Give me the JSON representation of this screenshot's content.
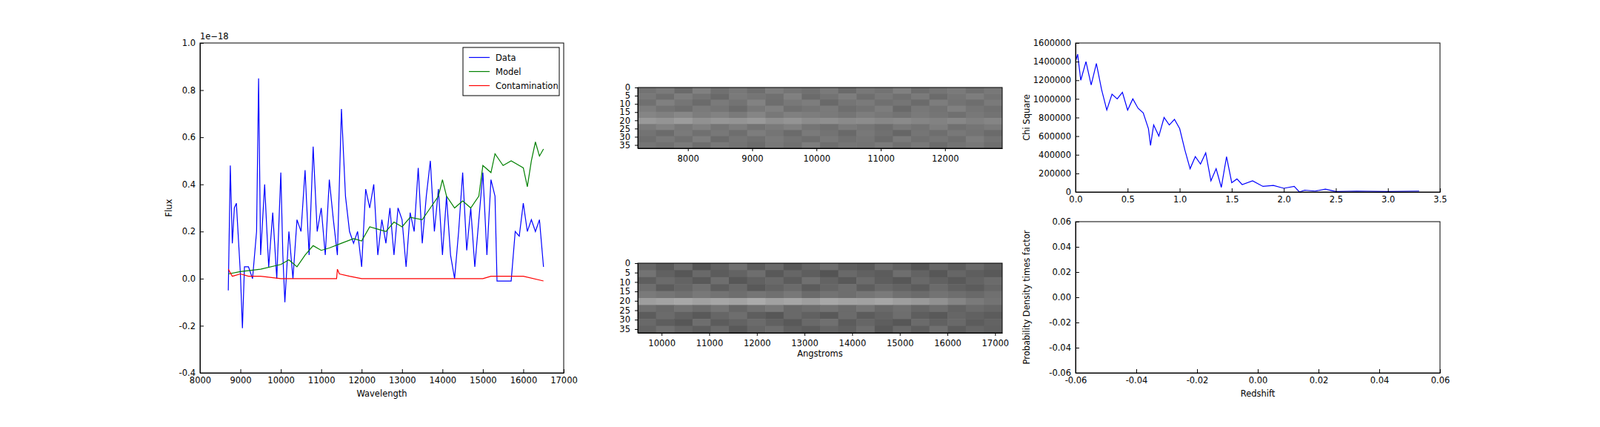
{
  "chart_data": [
    {
      "type": "line",
      "xlabel": "Wavelength",
      "ylabel": "Flux",
      "y_offset_label": "1e−18",
      "xlim": [
        8000,
        17000
      ],
      "ylim": [
        -0.4,
        1.0
      ],
      "xticks": [
        8000,
        9000,
        10000,
        11000,
        12000,
        13000,
        14000,
        15000,
        16000,
        17000
      ],
      "yticks": [
        -0.4,
        -0.2,
        {
          "value": 0,
          "label": "0.0"
        },
        0.2,
        0.4,
        0.6,
        0.8,
        {
          "value": 1,
          "label": "1.0"
        }
      ],
      "legend": "upper right",
      "series": [
        {
          "name": "Data",
          "color": "#0000ff",
          "x": [
            8700,
            8750,
            8800,
            8850,
            8900,
            9000,
            9050,
            9100,
            9200,
            9300,
            9400,
            9450,
            9500,
            9600,
            9650,
            9700,
            9800,
            9900,
            10000,
            10050,
            10100,
            10200,
            10300,
            10400,
            10500,
            10600,
            10700,
            10800,
            10900,
            11000,
            11100,
            11200,
            11300,
            11400,
            11500,
            11600,
            11700,
            11800,
            11900,
            12000,
            12100,
            12200,
            12300,
            12400,
            12500,
            12600,
            12700,
            12800,
            12900,
            13000,
            13100,
            13200,
            13300,
            13400,
            13500,
            13600,
            13700,
            13800,
            13900,
            14000,
            14100,
            14200,
            14300,
            14400,
            14500,
            14600,
            14700,
            14800,
            14900,
            15000,
            15100,
            15200,
            15300,
            15350,
            15500,
            15700,
            15800,
            15900,
            16000,
            16100,
            16200,
            16300,
            16400,
            16500
          ],
          "values": [
            -0.05,
            0.48,
            0.15,
            0.3,
            0.32,
            0.02,
            -0.21,
            0.05,
            0.05,
            0.0,
            0.2,
            0.85,
            0.1,
            0.4,
            0.22,
            0.05,
            0.28,
            0.0,
            0.45,
            0.1,
            -0.1,
            0.2,
            0.0,
            0.25,
            0.2,
            0.46,
            0.1,
            0.56,
            0.2,
            0.3,
            0.1,
            0.42,
            0.25,
            0.1,
            0.72,
            0.35,
            0.2,
            0.15,
            0.2,
            0.05,
            0.38,
            0.3,
            0.4,
            0.1,
            0.25,
            0.15,
            0.3,
            0.1,
            0.3,
            0.25,
            0.05,
            0.28,
            0.2,
            0.47,
            0.15,
            0.35,
            0.5,
            0.2,
            0.38,
            0.1,
            0.35,
            0.1,
            0.0,
            0.2,
            0.45,
            0.12,
            0.3,
            0.05,
            0.25,
            0.45,
            0.1,
            0.42,
            0.35,
            -0.01,
            -0.01,
            -0.01,
            0.2,
            0.18,
            0.32,
            0.2,
            0.25,
            0.2,
            0.25,
            0.05
          ]
        },
        {
          "name": "Model",
          "color": "#008000",
          "x": [
            8700,
            9000,
            9500,
            10000,
            10200,
            10400,
            10600,
            10800,
            11000,
            11200,
            11500,
            11800,
            12000,
            12200,
            12400,
            12600,
            12800,
            13000,
            13200,
            13500,
            13700,
            13900,
            14000,
            14100,
            14300,
            14500,
            14700,
            14900,
            15000,
            15200,
            15300,
            15500,
            15700,
            15900,
            16000,
            16100,
            16200,
            16300,
            16400,
            16500
          ],
          "values": [
            0.02,
            0.03,
            0.04,
            0.06,
            0.08,
            0.05,
            0.1,
            0.14,
            0.12,
            0.13,
            0.15,
            0.17,
            0.16,
            0.22,
            0.21,
            0.2,
            0.24,
            0.22,
            0.26,
            0.25,
            0.3,
            0.35,
            0.42,
            0.35,
            0.3,
            0.33,
            0.3,
            0.35,
            0.48,
            0.45,
            0.53,
            0.48,
            0.5,
            0.48,
            0.47,
            0.39,
            0.5,
            0.58,
            0.52,
            0.55
          ]
        },
        {
          "name": "Contamination",
          "color": "#ff0000",
          "x": [
            8700,
            8800,
            9000,
            9200,
            9500,
            10000,
            11000,
            11380,
            11400,
            11450,
            11700,
            12000,
            15000,
            15200,
            15500,
            16000,
            16500
          ],
          "values": [
            0.04,
            0.01,
            0.02,
            0.01,
            0.01,
            0.0,
            0.0,
            0.0,
            0.04,
            0.02,
            0.01,
            0.0,
            0.0,
            0.01,
            0.01,
            0.01,
            -0.01
          ]
        }
      ]
    },
    {
      "type": "heatmap",
      "xlim": [
        7220,
        12890
      ],
      "ylim": [
        0,
        37
      ],
      "xticks": [
        8000,
        9000,
        10000,
        11000,
        12000
      ],
      "yticks": [
        0,
        5,
        10,
        15,
        20,
        25,
        30,
        35
      ],
      "zlim": [
        0,
        1
      ],
      "z": [
        [
          0.45,
          0.48,
          0.42,
          0.5,
          0.44,
          0.47,
          0.43,
          0.49,
          0.46,
          0.44,
          0.48,
          0.42,
          0.47,
          0.45,
          0.5,
          0.43,
          0.46,
          0.48,
          0.44,
          0.47
        ],
        [
          0.47,
          0.43,
          0.49,
          0.45,
          0.41,
          0.48,
          0.46,
          0.44,
          0.5,
          0.42,
          0.45,
          0.49,
          0.43,
          0.47,
          0.44,
          0.48,
          0.42,
          0.46,
          0.49,
          0.45
        ],
        [
          0.44,
          0.5,
          0.46,
          0.42,
          0.48,
          0.45,
          0.51,
          0.43,
          0.47,
          0.49,
          0.41,
          0.46,
          0.48,
          0.44,
          0.46,
          0.42,
          0.49,
          0.45,
          0.43,
          0.48
        ],
        [
          0.49,
          0.45,
          0.43,
          0.48,
          0.46,
          0.42,
          0.47,
          0.5,
          0.44,
          0.46,
          0.48,
          0.43,
          0.45,
          0.49,
          0.41,
          0.47,
          0.45,
          0.5,
          0.46,
          0.44
        ],
        [
          0.52,
          0.5,
          0.53,
          0.49,
          0.51,
          0.48,
          0.52,
          0.47,
          0.5,
          0.49,
          0.48,
          0.46,
          0.49,
          0.47,
          0.45,
          0.48,
          0.46,
          0.44,
          0.47,
          0.45
        ],
        [
          0.6,
          0.58,
          0.61,
          0.57,
          0.59,
          0.58,
          0.6,
          0.56,
          0.58,
          0.55,
          0.56,
          0.54,
          0.55,
          0.53,
          0.54,
          0.52,
          0.51,
          0.53,
          0.5,
          0.52
        ],
        [
          0.48,
          0.51,
          0.47,
          0.5,
          0.46,
          0.49,
          0.45,
          0.48,
          0.5,
          0.46,
          0.44,
          0.48,
          0.46,
          0.43,
          0.47,
          0.45,
          0.49,
          0.44,
          0.46,
          0.48
        ],
        [
          0.45,
          0.42,
          0.48,
          0.44,
          0.47,
          0.43,
          0.49,
          0.46,
          0.42,
          0.48,
          0.45,
          0.41,
          0.47,
          0.44,
          0.4,
          0.46,
          0.43,
          0.47,
          0.45,
          0.42
        ],
        [
          0.43,
          0.47,
          0.44,
          0.49,
          0.42,
          0.46,
          0.44,
          0.48,
          0.45,
          0.43,
          0.47,
          0.44,
          0.46,
          0.42,
          0.48,
          0.44,
          0.46,
          0.43,
          0.49,
          0.45
        ],
        [
          0.46,
          0.44,
          0.48,
          0.43,
          0.47,
          0.45,
          0.42,
          0.47,
          0.44,
          0.49,
          0.43,
          0.46,
          0.45,
          0.48,
          0.44,
          0.47,
          0.42,
          0.45,
          0.47,
          0.43
        ]
      ]
    },
    {
      "type": "heatmap",
      "xlabel": "Angstroms",
      "xlim": [
        9500,
        17150
      ],
      "ylim": [
        0,
        37
      ],
      "xticks": [
        10000,
        11000,
        12000,
        13000,
        14000,
        15000,
        16000,
        17000
      ],
      "yticks": [
        0,
        5,
        10,
        15,
        20,
        25,
        30,
        35
      ],
      "zlim": [
        0,
        1
      ],
      "z": [
        [
          0.4,
          0.35,
          0.42,
          0.33,
          0.38,
          0.44,
          0.36,
          0.41,
          0.34,
          0.39,
          0.43,
          0.37,
          0.35,
          0.42,
          0.38,
          0.33,
          0.4,
          0.36,
          0.41,
          0.37
        ],
        [
          0.45,
          0.38,
          0.34,
          0.41,
          0.36,
          0.39,
          0.43,
          0.35,
          0.4,
          0.37,
          0.33,
          0.41,
          0.38,
          0.36,
          0.43,
          0.39,
          0.34,
          0.4,
          0.37,
          0.35
        ],
        [
          0.37,
          0.42,
          0.39,
          0.35,
          0.43,
          0.34,
          0.38,
          0.41,
          0.36,
          0.44,
          0.39,
          0.35,
          0.42,
          0.37,
          0.34,
          0.41,
          0.38,
          0.35,
          0.39,
          0.42
        ],
        [
          0.43,
          0.36,
          0.4,
          0.44,
          0.37,
          0.41,
          0.35,
          0.39,
          0.42,
          0.36,
          0.4,
          0.43,
          0.37,
          0.41,
          0.39,
          0.36,
          0.42,
          0.38,
          0.36,
          0.4
        ],
        [
          0.48,
          0.46,
          0.44,
          0.47,
          0.45,
          0.43,
          0.46,
          0.44,
          0.47,
          0.42,
          0.45,
          0.43,
          0.46,
          0.48,
          0.44,
          0.42,
          0.45,
          0.43,
          0.41,
          0.44
        ],
        [
          0.62,
          0.64,
          0.66,
          0.63,
          0.65,
          0.64,
          0.67,
          0.63,
          0.65,
          0.62,
          0.66,
          0.64,
          0.63,
          0.65,
          0.62,
          0.6,
          0.57,
          0.52,
          0.48,
          0.45
        ],
        [
          0.44,
          0.41,
          0.45,
          0.42,
          0.46,
          0.4,
          0.44,
          0.47,
          0.41,
          0.43,
          0.45,
          0.42,
          0.46,
          0.41,
          0.44,
          0.4,
          0.43,
          0.39,
          0.42,
          0.4
        ],
        [
          0.36,
          0.42,
          0.38,
          0.35,
          0.4,
          0.43,
          0.37,
          0.34,
          0.41,
          0.38,
          0.35,
          0.42,
          0.36,
          0.39,
          0.43,
          0.37,
          0.35,
          0.4,
          0.38,
          0.36
        ],
        [
          0.41,
          0.37,
          0.34,
          0.43,
          0.36,
          0.39,
          0.42,
          0.38,
          0.35,
          0.41,
          0.44,
          0.36,
          0.4,
          0.37,
          0.34,
          0.42,
          0.38,
          0.41,
          0.36,
          0.39
        ],
        [
          0.39,
          0.44,
          0.4,
          0.37,
          0.42,
          0.35,
          0.4,
          0.43,
          0.38,
          0.36,
          0.4,
          0.38,
          0.43,
          0.35,
          0.41,
          0.37,
          0.44,
          0.36,
          0.4,
          0.38
        ]
      ]
    },
    {
      "type": "line",
      "ylabel": "Chi Square",
      "xlim": [
        0,
        3.5
      ],
      "ylim": [
        0,
        1600000
      ],
      "xticks": [
        {
          "value": 0,
          "label": "0.0"
        },
        0.5,
        {
          "value": 1,
          "label": "1.0"
        },
        1.5,
        {
          "value": 2,
          "label": "2.0"
        },
        2.5,
        {
          "value": 3,
          "label": "3.0"
        },
        3.5
      ],
      "yticks": [
        0,
        200000,
        400000,
        600000,
        800000,
        1000000,
        1200000,
        1400000,
        1600000
      ],
      "series": [
        {
          "color": "#0000ff",
          "x": [
            0,
            0.02,
            0.05,
            0.1,
            0.15,
            0.2,
            0.25,
            0.3,
            0.35,
            0.4,
            0.45,
            0.5,
            0.55,
            0.6,
            0.65,
            0.7,
            0.72,
            0.75,
            0.8,
            0.85,
            0.9,
            0.95,
            1.0,
            1.05,
            1.1,
            1.15,
            1.2,
            1.25,
            1.3,
            1.35,
            1.4,
            1.45,
            1.5,
            1.55,
            1.6,
            1.7,
            1.8,
            1.9,
            2.0,
            2.1,
            2.15,
            2.2,
            2.3,
            2.4,
            2.5,
            2.7,
            3.0,
            3.3
          ],
          "values": [
            1400000,
            1480000,
            1200000,
            1400000,
            1150000,
            1380000,
            1100000,
            880000,
            1050000,
            1000000,
            1070000,
            880000,
            1000000,
            900000,
            850000,
            680000,
            500000,
            720000,
            600000,
            800000,
            720000,
            780000,
            680000,
            450000,
            250000,
            380000,
            300000,
            420000,
            120000,
            250000,
            50000,
            380000,
            100000,
            140000,
            80000,
            120000,
            60000,
            70000,
            40000,
            60000,
            0,
            20000,
            10000,
            30000,
            5000,
            10000,
            5000,
            10000
          ]
        }
      ]
    },
    {
      "type": "line",
      "xlabel": "Redshift",
      "ylabel": "Probability Density times factor",
      "xlim": [
        -0.06,
        0.06
      ],
      "ylim": [
        -0.06,
        0.06
      ],
      "xticks": [
        -0.06,
        -0.04,
        -0.02,
        {
          "value": 0,
          "label": "0.00"
        },
        0.02,
        0.04,
        0.06
      ],
      "yticks": [
        -0.06,
        -0.04,
        -0.02,
        {
          "value": 0,
          "label": "0.00"
        },
        0.02,
        0.04,
        0.06
      ],
      "series": []
    }
  ]
}
